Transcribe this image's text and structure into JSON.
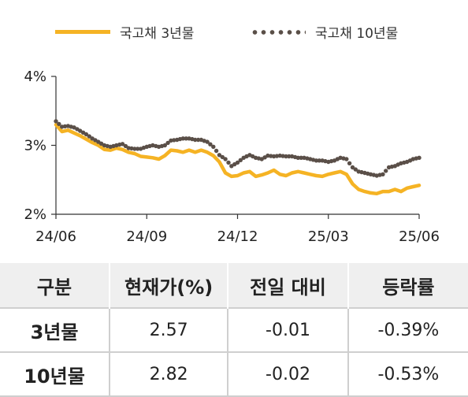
{
  "chart_data": {
    "type": "line",
    "x_labels": [
      "24/06",
      "24/09",
      "24/12",
      "25/03",
      "25/06"
    ],
    "y_ticks": [
      "2%",
      "3%",
      "4%"
    ],
    "ylim": [
      2,
      4
    ],
    "legend_position": "top",
    "series": [
      {
        "name": "국고채 3년물",
        "style": "solid",
        "color": "#f5b324",
        "values": [
          3.3,
          3.2,
          3.22,
          3.18,
          3.14,
          3.09,
          3.04,
          3.0,
          2.94,
          2.93,
          2.96,
          2.94,
          2.9,
          2.88,
          2.84,
          2.83,
          2.82,
          2.8,
          2.85,
          2.93,
          2.92,
          2.9,
          2.93,
          2.9,
          2.93,
          2.9,
          2.85,
          2.76,
          2.6,
          2.55,
          2.56,
          2.6,
          2.62,
          2.55,
          2.57,
          2.6,
          2.64,
          2.58,
          2.56,
          2.6,
          2.62,
          2.6,
          2.58,
          2.56,
          2.55,
          2.58,
          2.6,
          2.62,
          2.58,
          2.44,
          2.36,
          2.33,
          2.31,
          2.3,
          2.33,
          2.33,
          2.36,
          2.33,
          2.38,
          2.4,
          2.42
        ]
      },
      {
        "name": "국고채 10년물",
        "style": "dotted",
        "color": "#5a4f48",
        "values": [
          3.35,
          3.27,
          3.28,
          3.26,
          3.21,
          3.16,
          3.1,
          3.05,
          3.0,
          2.98,
          3.0,
          3.02,
          2.96,
          2.95,
          2.95,
          2.98,
          3.0,
          2.98,
          3.0,
          3.07,
          3.08,
          3.1,
          3.1,
          3.08,
          3.08,
          3.05,
          2.98,
          2.86,
          2.8,
          2.7,
          2.75,
          2.82,
          2.86,
          2.82,
          2.8,
          2.85,
          2.84,
          2.85,
          2.84,
          2.84,
          2.82,
          2.82,
          2.8,
          2.78,
          2.78,
          2.76,
          2.78,
          2.82,
          2.8,
          2.68,
          2.62,
          2.6,
          2.58,
          2.56,
          2.58,
          2.68,
          2.7,
          2.74,
          2.76,
          2.8,
          2.82
        ]
      }
    ]
  },
  "table": {
    "headers": [
      "구분",
      "현재가(%)",
      "전일 대비",
      "등락률"
    ],
    "rows": [
      [
        "3년물",
        "2.57",
        "-0.01",
        "-0.39%"
      ],
      [
        "10년물",
        "2.82",
        "-0.02",
        "-0.53%"
      ]
    ]
  }
}
